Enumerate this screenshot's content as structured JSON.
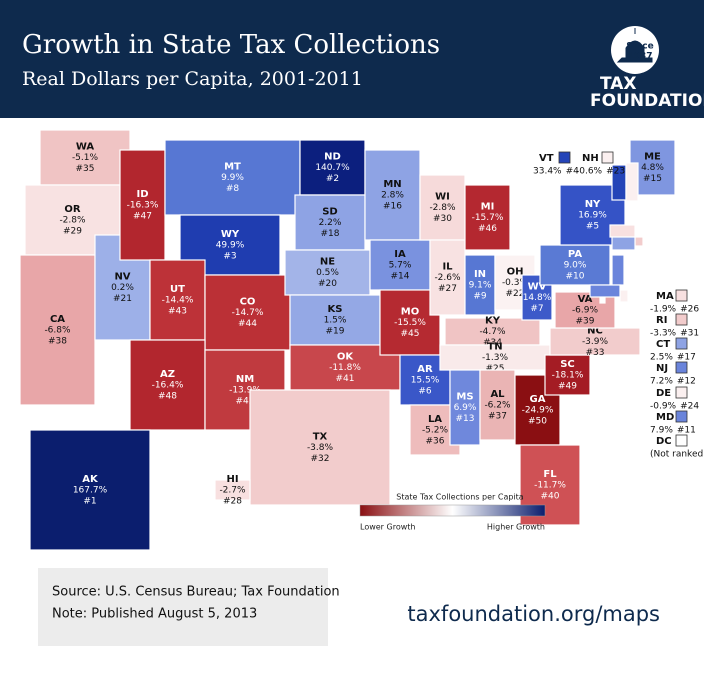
{
  "header": {
    "title": "Growth in State Tax Collections",
    "subtitle": "Real Dollars per Capita, 2001-2011"
  },
  "logo": {
    "since": "Since",
    "year": "1937",
    "line1": "TAX",
    "line2": "FOUNDATION"
  },
  "states": [
    {
      "abbr": "WA",
      "change": "-5.1%",
      "rank": "#35",
      "color": "#f0c4c4"
    },
    {
      "abbr": "OR",
      "change": "-2.8%",
      "rank": "#29",
      "color": "#f8e2e2"
    },
    {
      "abbr": "CA",
      "change": "-6.8%",
      "rank": "#38",
      "color": "#e8a6a8"
    },
    {
      "abbr": "NV",
      "change": "0.2%",
      "rank": "#21",
      "color": "#9db0e8"
    },
    {
      "abbr": "ID",
      "change": "-16.3%",
      "rank": "#47",
      "color": "#b2262e"
    },
    {
      "abbr": "MT",
      "change": "9.9%",
      "rank": "#8",
      "color": "#5777d3"
    },
    {
      "abbr": "WY",
      "change": "49.9%",
      "rank": "#3",
      "color": "#1f3db0"
    },
    {
      "abbr": "UT",
      "change": "-14.4%",
      "rank": "#43",
      "color": "#bd3238"
    },
    {
      "abbr": "CO",
      "change": "-14.7%",
      "rank": "#44",
      "color": "#bb3036"
    },
    {
      "abbr": "AZ",
      "change": "-16.4%",
      "rank": "#48",
      "color": "#b2262e"
    },
    {
      "abbr": "NM",
      "change": "-13.9%",
      "rank": "#42",
      "color": "#c03a3f"
    },
    {
      "abbr": "ND",
      "change": "140.7%",
      "rank": "#2",
      "color": "#0c1f7e"
    },
    {
      "abbr": "SD",
      "change": "2.2%",
      "rank": "#18",
      "color": "#8ea3e4"
    },
    {
      "abbr": "NE",
      "change": "0.5%",
      "rank": "#20",
      "color": "#a3b4e8"
    },
    {
      "abbr": "KS",
      "change": "1.5%",
      "rank": "#19",
      "color": "#94a8e5"
    },
    {
      "abbr": "OK",
      "change": "-11.8%",
      "rank": "#41",
      "color": "#c8474c"
    },
    {
      "abbr": "TX",
      "change": "-3.8%",
      "rank": "#32",
      "color": "#f2cccc"
    },
    {
      "abbr": "MN",
      "change": "2.8%",
      "rank": "#16",
      "color": "#8ea3e4"
    },
    {
      "abbr": "IA",
      "change": "5.7%",
      "rank": "#14",
      "color": "#7a92df"
    },
    {
      "abbr": "MO",
      "change": "-15.5%",
      "rank": "#45",
      "color": "#b52a31"
    },
    {
      "abbr": "AR",
      "change": "15.5%",
      "rank": "#6",
      "color": "#3a57c8"
    },
    {
      "abbr": "LA",
      "change": "-5.2%",
      "rank": "#36",
      "color": "#eebcbc"
    },
    {
      "abbr": "WI",
      "change": "-2.8%",
      "rank": "#30",
      "color": "#f6dada"
    },
    {
      "abbr": "IL",
      "change": "-2.6%",
      "rank": "#27",
      "color": "#f8e2e2"
    },
    {
      "abbr": "MI",
      "change": "-15.7%",
      "rank": "#46",
      "color": "#b42830"
    },
    {
      "abbr": "IN",
      "change": "9.1%",
      "rank": "#9",
      "color": "#5777d3"
    },
    {
      "abbr": "OH",
      "change": "-0.3%",
      "rank": "#22",
      "color": "#fbf2f2"
    },
    {
      "abbr": "KY",
      "change": "-4.7%",
      "rank": "#34",
      "color": "#f0c4c4"
    },
    {
      "abbr": "TN",
      "change": "-1.3%",
      "rank": "#25",
      "color": "#f9eaea"
    },
    {
      "abbr": "MS",
      "change": "6.9%",
      "rank": "#13",
      "color": "#6f88dc"
    },
    {
      "abbr": "AL",
      "change": "-6.2%",
      "rank": "#37",
      "color": "#eab4b4"
    },
    {
      "abbr": "GA",
      "change": "-24.9%",
      "rank": "#50",
      "color": "#8a0f12"
    },
    {
      "abbr": "FL",
      "change": "-11.7%",
      "rank": "#40",
      "color": "#cf5155"
    },
    {
      "abbr": "SC",
      "change": "-18.1%",
      "rank": "#49",
      "color": "#a41c24"
    },
    {
      "abbr": "NC",
      "change": "-3.9%",
      "rank": "#33",
      "color": "#f2cccc"
    },
    {
      "abbr": "VA",
      "change": "-6.9%",
      "rank": "#39",
      "color": "#e8a6a8"
    },
    {
      "abbr": "WV",
      "change": "14.8%",
      "rank": "#7",
      "color": "#3d5ac9"
    },
    {
      "abbr": "PA",
      "change": "9.0%",
      "rank": "#10",
      "color": "#5a7ad4"
    },
    {
      "abbr": "NY",
      "change": "16.9%",
      "rank": "#5",
      "color": "#3553c6"
    },
    {
      "abbr": "ME",
      "change": "4.8%",
      "rank": "#15",
      "color": "#7f96e0"
    },
    {
      "abbr": "VT",
      "change": "33.4%",
      "rank": "#4",
      "color": "#2444b8"
    },
    {
      "abbr": "NH",
      "change": "-0.6%",
      "rank": "#23",
      "color": "#fbf0f0"
    },
    {
      "abbr": "MA",
      "change": "-1.9%",
      "rank": "#26",
      "color": "#f8e0e0"
    },
    {
      "abbr": "RI",
      "change": "-3.3%",
      "rank": "#31",
      "color": "#f2cccc"
    },
    {
      "abbr": "CT",
      "change": "2.5%",
      "rank": "#17",
      "color": "#8ea3e4"
    },
    {
      "abbr": "NJ",
      "change": "7.2%",
      "rank": "#12",
      "color": "#6a84db"
    },
    {
      "abbr": "DE",
      "change": "-0.9%",
      "rank": "#24",
      "color": "#fbf0f0"
    },
    {
      "abbr": "MD",
      "change": "7.9%",
      "rank": "#11",
      "color": "#6a84db"
    },
    {
      "abbr": "DC",
      "rank": "(Not ranked)",
      "color": "#ffffff"
    },
    {
      "abbr": "AK",
      "change": "167.7%",
      "rank": "#1",
      "color": "#0b1e6e"
    },
    {
      "abbr": "HI",
      "change": "-2.7%",
      "rank": "#28",
      "color": "#f8e0e0"
    }
  ],
  "legend": {
    "title": "State Tax Collections per Capita",
    "low": "Lower Growth",
    "high": "Higher Growth"
  },
  "footer": {
    "source": "Source: U.S. Census Bureau; Tax Foundation",
    "note": "Note: Published August 5, 2013",
    "url": "taxfoundation.org/maps"
  }
}
